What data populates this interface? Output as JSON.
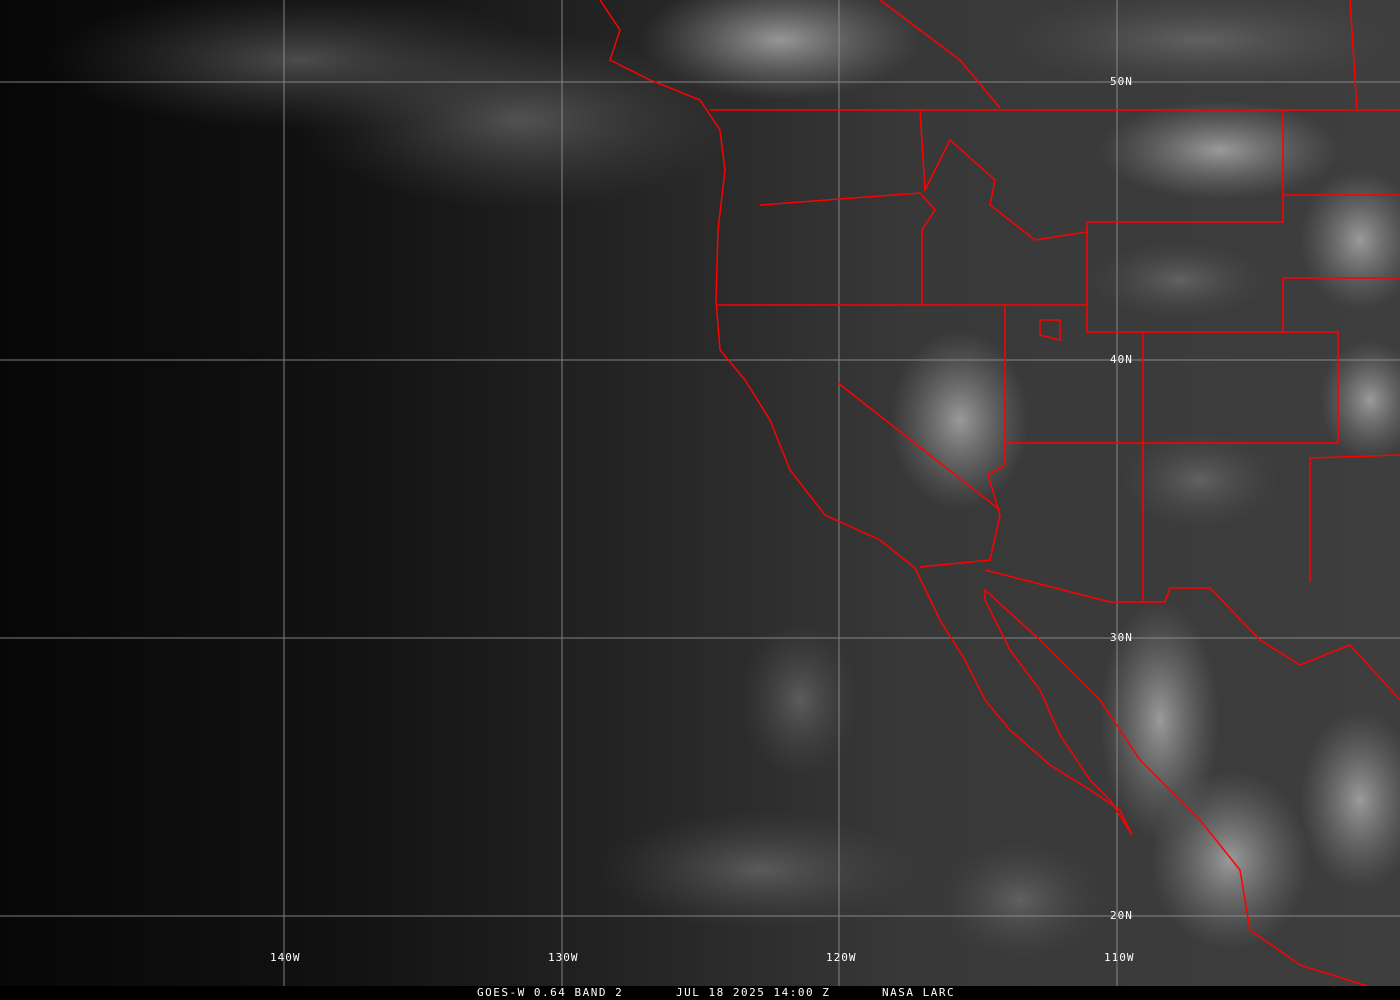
{
  "caption": {
    "satellite": "GOES-W 0.64 BAND 2",
    "datetime": "JUL 18 2025 14:00 Z",
    "source": "NASA LARC"
  },
  "grid": {
    "lat_labels": [
      "50N",
      "40N",
      "30N",
      "20N"
    ],
    "lon_labels": [
      "140W",
      "130W",
      "120W",
      "110W"
    ]
  },
  "colors": {
    "borders": "#ff0000",
    "grid": "#9a9a9a"
  }
}
